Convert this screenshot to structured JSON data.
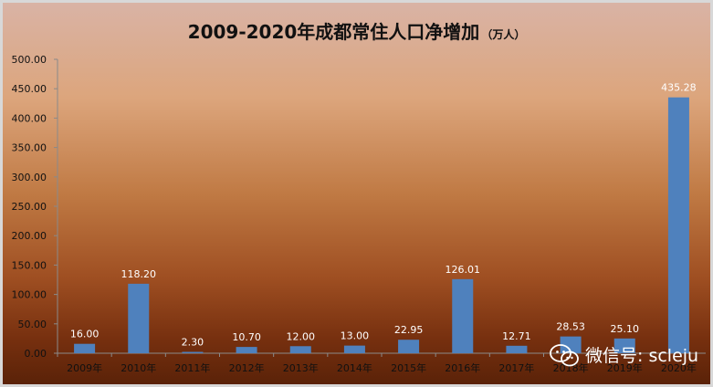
{
  "chart_data": {
    "type": "bar",
    "title": "2009-2020年成都常住人口净增加",
    "unit": "（万人）",
    "categories": [
      "2009年",
      "2010年",
      "2011年",
      "2012年",
      "2013年",
      "2014年",
      "2015年",
      "2016年",
      "2017年",
      "2018年",
      "2019年",
      "2020年"
    ],
    "values": [
      16.0,
      118.2,
      2.3,
      10.7,
      12.0,
      13.0,
      22.95,
      126.01,
      12.71,
      28.53,
      25.1,
      435.28
    ],
    "data_labels": [
      "16.00",
      "118.20",
      "2.30",
      "10.70",
      "12.00",
      "13.00",
      "22.95",
      "126.01",
      "12.71",
      "28.53",
      "25.10",
      "435.28"
    ],
    "ylim": [
      0,
      500
    ],
    "yticks": [
      "0.00",
      "50.00",
      "100.00",
      "150.00",
      "200.00",
      "250.00",
      "300.00",
      "350.00",
      "400.00",
      "450.00",
      "500.00"
    ],
    "bar_color": "#4f81bd",
    "xlabel": "",
    "ylabel": "",
    "grid": false
  },
  "watermark": {
    "text": "微信号: scleju",
    "icon": "wechat-icon"
  }
}
